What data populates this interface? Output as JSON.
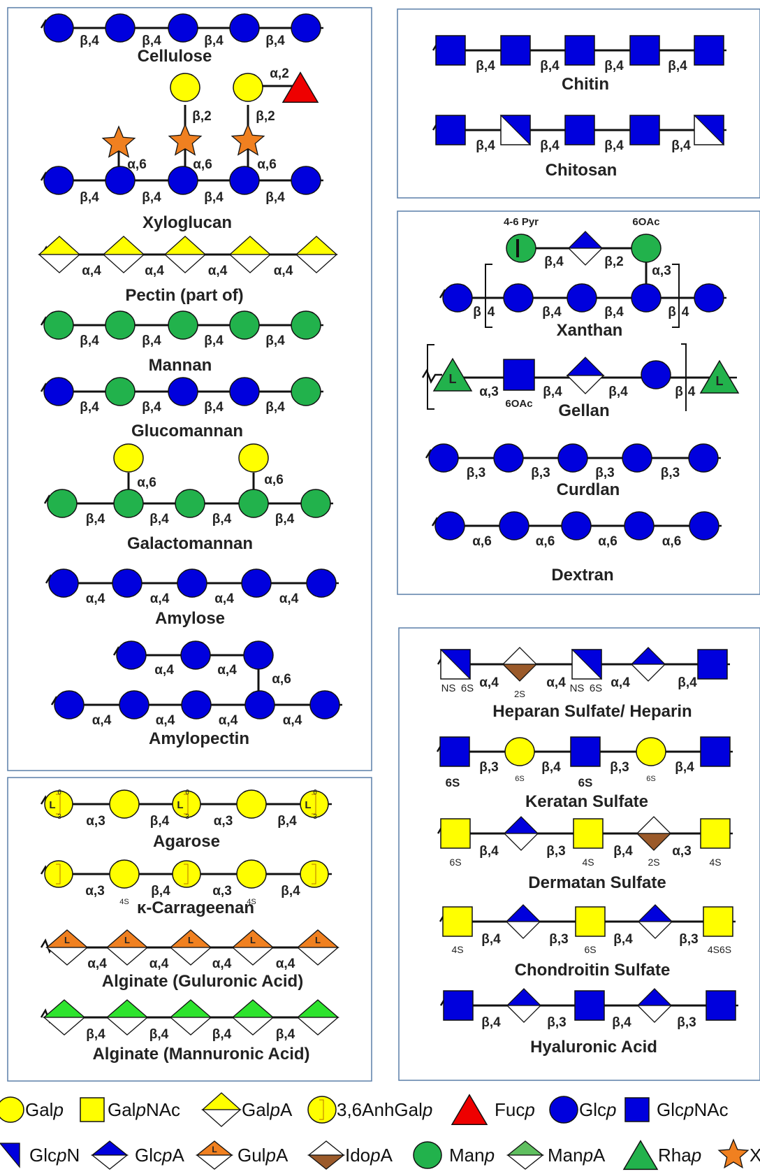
{
  "colors": {
    "blue": "#0000dd",
    "yellow": "#ffff00",
    "green": "#22b24c",
    "light_green": "#2ee32e",
    "orange": "#f08020",
    "red": "#ee0000",
    "brown": "#9b5a2a",
    "panel_border": "#5a7fa8",
    "line": "#111111"
  },
  "panels": {
    "cellulose": {
      "name": "Cellulose",
      "links": [
        "β,4",
        "β,4",
        "β,4",
        "β,4"
      ]
    },
    "xyloglucan": {
      "name": "Xyloglucan",
      "links": [
        "β,4",
        "β,4",
        "β,4",
        "β,4"
      ],
      "branch_links": [
        "α,6",
        "α,6",
        "α,6"
      ],
      "gal_links": [
        "β,2",
        "β,2"
      ],
      "fuc_link": "α,2"
    },
    "pectin": {
      "name": "Pectin (part of)",
      "links": [
        "α,4",
        "α,4",
        "α,4",
        "α,4"
      ]
    },
    "mannan": {
      "name": "Mannan",
      "links": [
        "β,4",
        "β,4",
        "β,4",
        "β,4"
      ]
    },
    "glucomannan": {
      "name": "Glucomannan",
      "links": [
        "β,4",
        "β,4",
        "β,4",
        "β,4"
      ]
    },
    "galactomannan": {
      "name": "Galactomannan",
      "links": [
        "β,4",
        "β,4",
        "β,4",
        "β,4"
      ],
      "branch_links": [
        "α,6",
        "α,6"
      ]
    },
    "amylose": {
      "name": "Amylose",
      "links": [
        "α,4",
        "α,4",
        "α,4",
        "α,4"
      ]
    },
    "amylopectin": {
      "name": "Amylopectin",
      "top_links": [
        "α,4",
        "α,4"
      ],
      "branch_link": "α,6",
      "links": [
        "α,4",
        "α,4",
        "α,4",
        "α,4"
      ]
    },
    "agarose": {
      "name": "Agarose",
      "links": [
        "α,3",
        "β,4",
        "α,3",
        "β,4"
      ],
      "anh_label": "L",
      "anh_six": "6",
      "anh_three": "3"
    },
    "carrageenan": {
      "name": "κ-Carrageenan",
      "links": [
        "α,3",
        "β,4",
        "α,3",
        "β,4"
      ],
      "sulfate": [
        "4S",
        "4S"
      ]
    },
    "alginate_g": {
      "name": "Alginate (Guluronic Acid)",
      "links": [
        "α,4",
        "α,4",
        "α,4",
        "α,4"
      ],
      "glyph": "L"
    },
    "alginate_m": {
      "name": "Alginate (Mannuronic Acid)",
      "links": [
        "β,4",
        "β,4",
        "β,4",
        "β,4"
      ]
    },
    "chitin": {
      "name": "Chitin",
      "links": [
        "β,4",
        "β,4",
        "β,4",
        "β,4"
      ]
    },
    "chitosan": {
      "name": "Chitosan",
      "links": [
        "β,4",
        "β,4",
        "β,4",
        "β,4"
      ]
    },
    "xanthan": {
      "name": "Xanthan",
      "pyr_label": "4-6 Pyr",
      "oac_label": "6OAc",
      "side_links": [
        "β,4",
        "β,2"
      ],
      "branch_link": "α,3",
      "links": [
        "β",
        "4",
        "β,4",
        "β,4",
        "β",
        "4"
      ]
    },
    "gellan": {
      "name": "Gellan",
      "rha_glyph": "L",
      "links": [
        "α,3",
        "β,4",
        "β,4",
        "β",
        "4"
      ],
      "oac_label": "6OAc"
    },
    "curdlan": {
      "name": "Curdlan",
      "links": [
        "β,3",
        "β,3",
        "β,3",
        "β,3"
      ]
    },
    "dextran": {
      "name": "Dextran",
      "links": [
        "α,6",
        "α,6",
        "α,6",
        "α,6"
      ]
    },
    "heparan": {
      "name": "Heparan Sulfate/ Heparin",
      "links": [
        "α,4",
        "α,4",
        "α,4",
        "β,4"
      ],
      "mods": [
        "NS",
        "6S",
        "2S",
        "NS",
        "6S"
      ]
    },
    "keratan": {
      "name": "Keratan Sulfate",
      "links": [
        "β,3",
        "β,4",
        "β,3",
        "β,4"
      ],
      "mods": [
        "6S",
        "6S",
        "6S",
        "6S"
      ]
    },
    "dermatan": {
      "name": "Dermatan Sulfate",
      "links": [
        "β,4",
        "β,3",
        "β,4",
        "α,3"
      ],
      "mods": [
        "6S",
        "4S",
        "2S",
        "4S"
      ]
    },
    "chondroitin": {
      "name": "Chondroitin Sulfate",
      "links": [
        "β,4",
        "β,3",
        "β,4",
        "β,3"
      ],
      "mods": [
        "4S",
        "6S",
        "4S6S"
      ]
    },
    "hyaluronic": {
      "name": "Hyaluronic Acid",
      "links": [
        "β,4",
        "β,3",
        "β,4",
        "β,3"
      ]
    }
  },
  "legend": {
    "row1": [
      {
        "text": "Gal",
        "italic": "p",
        "post": ""
      },
      {
        "text": "Gal",
        "italic": "p",
        "post": "NAc"
      },
      {
        "text": "Gal",
        "italic": "p",
        "post": "A"
      },
      {
        "text": "3,6AnhGal",
        "italic": "p",
        "post": ""
      },
      {
        "text": "Fuc",
        "italic": "p",
        "post": ""
      },
      {
        "text": "Glc",
        "italic": "p",
        "post": ""
      },
      {
        "text": "Glc",
        "italic": "p",
        "post": "NAc"
      }
    ],
    "row2": [
      {
        "text": "Glc",
        "italic": "p",
        "post": "N"
      },
      {
        "text": "Glc",
        "italic": "p",
        "post": "A"
      },
      {
        "text": "Gul",
        "italic": "p",
        "post": "A"
      },
      {
        "text": "Ido",
        "italic": "p",
        "post": "A"
      },
      {
        "text": "Man",
        "italic": "p",
        "post": ""
      },
      {
        "text": "Man",
        "italic": "p",
        "post": "A"
      },
      {
        "text": "Rha",
        "italic": "p",
        "post": ""
      },
      {
        "text": "X",
        "italic": "",
        "post": ""
      }
    ]
  }
}
